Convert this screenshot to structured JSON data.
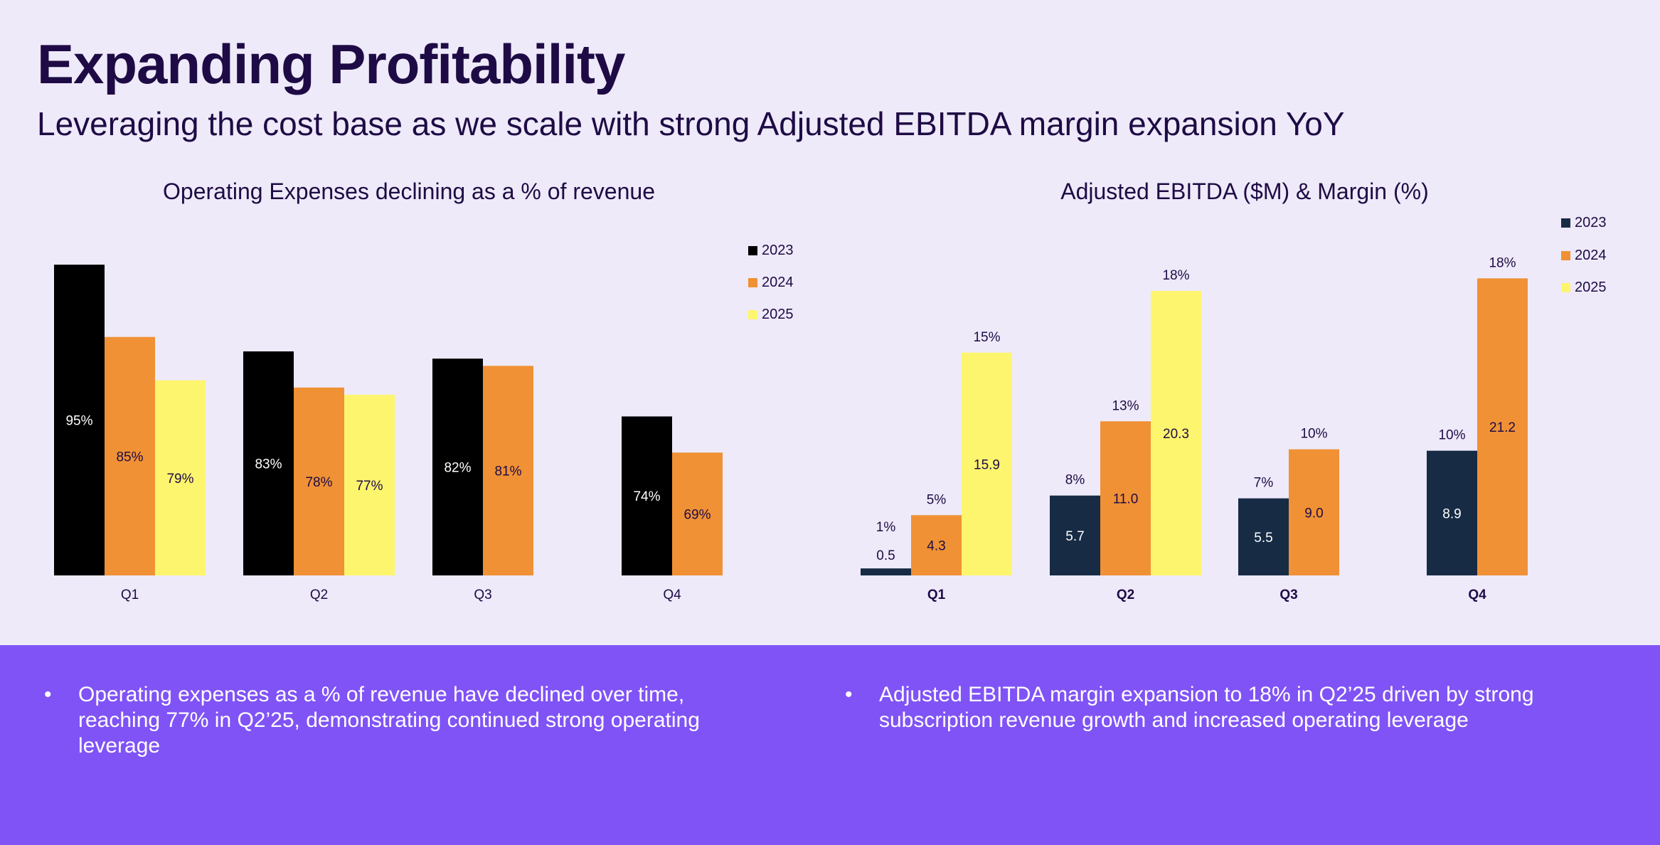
{
  "header": {
    "title": "Expanding Profitability",
    "subtitle": "Leveraging the cost base as we scale with strong Adjusted EBITDA margin expansion YoY"
  },
  "colors": {
    "page_background": "#EEEAF9",
    "title_text": "#1E0B45",
    "bottom_panel": "#8053F6"
  },
  "chart_data": [
    {
      "id": "opex",
      "type": "bar",
      "title": "Operating Expenses declining as a % of revenue",
      "categories": [
        "Q1",
        "Q2",
        "Q3",
        "Q4"
      ],
      "series": [
        {
          "name": "2023",
          "color": "#000000",
          "values": [
            95,
            83,
            82,
            74
          ],
          "labels": [
            "95%",
            "83%",
            "82%",
            "74%"
          ]
        },
        {
          "name": "2024",
          "color": "#F09135",
          "values": [
            85,
            78,
            81,
            69
          ],
          "labels": [
            "85%",
            "78%",
            "81%",
            "69%"
          ]
        },
        {
          "name": "2025",
          "color": "#FDF56E",
          "values": [
            79,
            77,
            null,
            null
          ],
          "labels": [
            "79%",
            "77%",
            "",
            ""
          ]
        }
      ],
      "legend": "top-right",
      "grid": false
    },
    {
      "id": "ebitda",
      "type": "bar",
      "title": "Adjusted EBITDA ($M) & Margin (%)",
      "categories": [
        "Q1",
        "Q2",
        "Q3",
        "Q4"
      ],
      "series": [
        {
          "name": "2023",
          "color": "#172B45",
          "values": [
            0.5,
            5.7,
            5.5,
            8.9
          ],
          "labels": [
            "0.5",
            "5.7",
            "5.5",
            "8.9"
          ],
          "margins": [
            "1%",
            "8%",
            "7%",
            "10%"
          ]
        },
        {
          "name": "2024",
          "color": "#F09135",
          "values": [
            4.3,
            11.0,
            9.0,
            21.2
          ],
          "labels": [
            "4.3",
            "11.0",
            "9.0",
            "21.2"
          ],
          "margins": [
            "5%",
            "13%",
            "10%",
            "18%"
          ]
        },
        {
          "name": "2025",
          "color": "#FDF56E",
          "values": [
            15.9,
            20.3,
            null,
            null
          ],
          "labels": [
            "15.9",
            "20.3",
            "",
            ""
          ],
          "margins": [
            "15%",
            "18%",
            "",
            ""
          ]
        }
      ],
      "legend": "top-right",
      "grid": false
    }
  ],
  "bullets": {
    "left": "Operating expenses as a % of revenue have declined over time, reaching 77% in Q2’25, demonstrating continued strong operating leverage",
    "right": "Adjusted EBITDA margin expansion to 18% in Q2’25 driven by strong subscription revenue growth and increased operating leverage"
  }
}
